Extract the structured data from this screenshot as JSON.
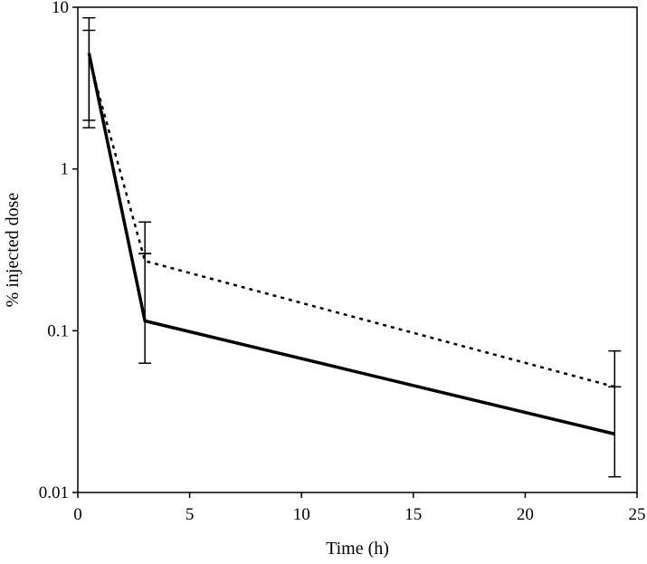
{
  "chart_data": {
    "type": "line",
    "xlabel": "Time (h)",
    "ylabel": "% injected dose",
    "xlim": [
      0,
      25
    ],
    "ylim": [
      0.01,
      10
    ],
    "yscale": "log",
    "xticks": [
      0,
      5,
      10,
      15,
      20,
      25
    ],
    "xtick_labels": [
      "0",
      "5",
      "10",
      "15",
      "20",
      "25"
    ],
    "yticks": [
      0.01,
      0.1,
      1,
      10
    ],
    "ytick_labels": [
      "0.01",
      "0.1",
      "1",
      "10"
    ],
    "grid": false,
    "legend": "none",
    "series": [
      {
        "style": "solid",
        "x": [
          0.5,
          3,
          24
        ],
        "y": [
          5.2,
          0.115,
          0.023
        ],
        "error_low": [
          1.8,
          0.063,
          0.0125
        ],
        "error_high": [
          8.6,
          0.47,
          0.075
        ]
      },
      {
        "style": "dashed",
        "x": [
          0.5,
          3,
          24
        ],
        "y": [
          4.8,
          0.27,
          0.045
        ],
        "error_low": [
          2.0,
          0.3,
          0.045
        ],
        "error_high": [
          7.2,
          0.3,
          0.045
        ]
      }
    ]
  }
}
